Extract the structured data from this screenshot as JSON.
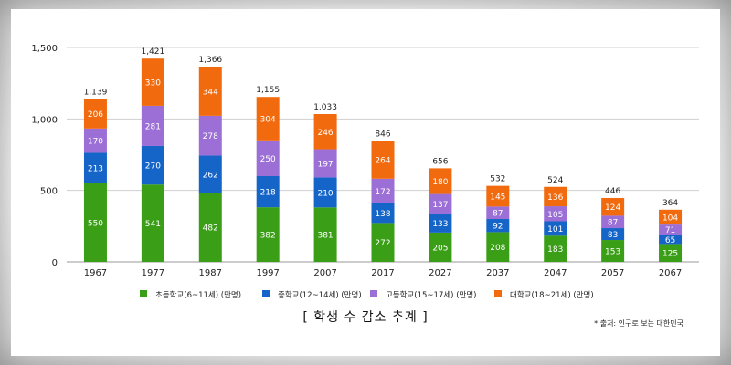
{
  "chart_data": {
    "type": "bar",
    "stacked": true,
    "title": "",
    "caption": "[ 학생 수 감소 추계 ]",
    "source": "* 출처: 인구로 보는 대한민국",
    "xlabel": "",
    "ylabel": "",
    "ylim": [
      0,
      1500
    ],
    "yticks": [
      0,
      500,
      1000,
      1500
    ],
    "ytick_labels": [
      "0",
      "500",
      "1,000",
      "1,500"
    ],
    "grid": true,
    "legend_position": "bottom",
    "categories": [
      "1967",
      "1977",
      "1987",
      "1997",
      "2007",
      "2017",
      "2027",
      "2037",
      "2047",
      "2057",
      "2067"
    ],
    "series": [
      {
        "name": "초등학교(6~11세) (만명)",
        "color": "#3a9e16",
        "values": [
          550,
          541,
          482,
          382,
          381,
          272,
          205,
          208,
          183,
          153,
          125
        ]
      },
      {
        "name": "중학교(12~14세) (만명)",
        "color": "#1565c8",
        "values": [
          213,
          270,
          262,
          218,
          210,
          138,
          133,
          92,
          101,
          83,
          65
        ]
      },
      {
        "name": "고등학교(15~17세) (만명)",
        "color": "#9b6fd6",
        "values": [
          170,
          281,
          278,
          250,
          197,
          172,
          137,
          87,
          105,
          87,
          71
        ]
      },
      {
        "name": "대학교(18~21세) (만명)",
        "color": "#f26a0e",
        "values": [
          206,
          330,
          344,
          304,
          246,
          264,
          180,
          145,
          136,
          124,
          104
        ]
      }
    ],
    "totals": [
      "1,139",
      "1,421",
      "1,366",
      "1,155",
      "1,033",
      "846",
      "656",
      "532",
      "524",
      "446",
      "364"
    ]
  }
}
